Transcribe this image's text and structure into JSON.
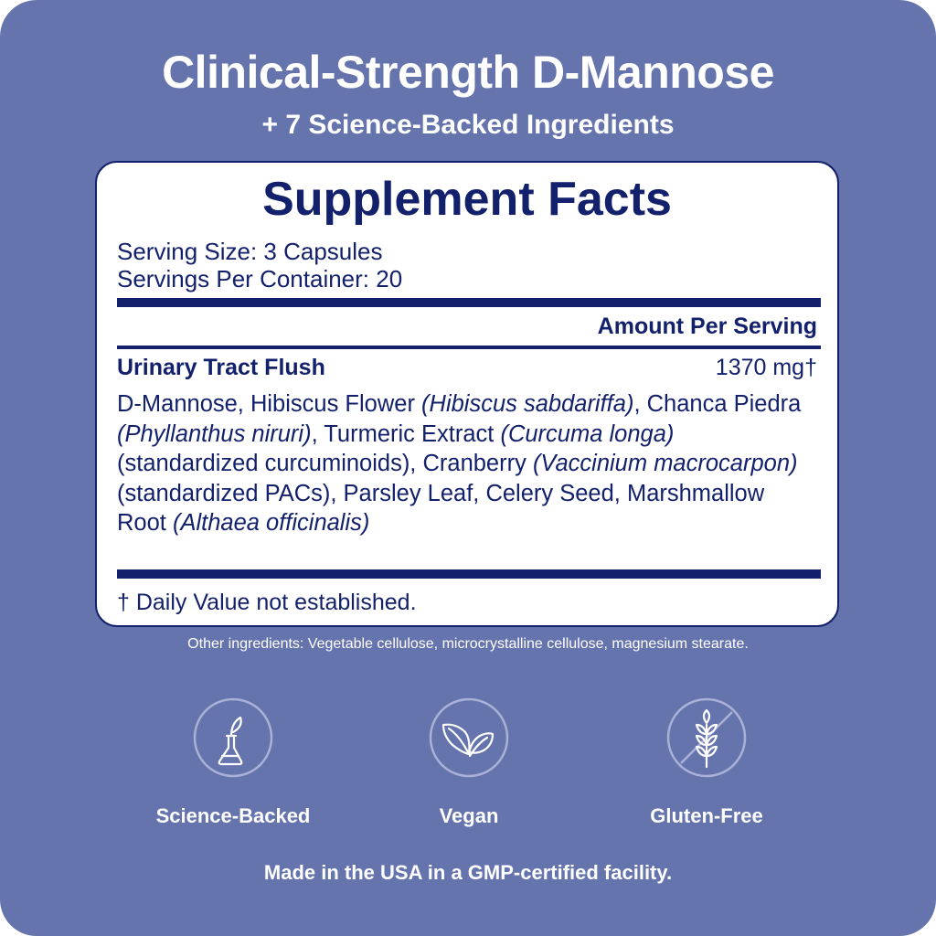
{
  "header": {
    "title": "Clinical-Strength D-Mannose",
    "subtitle": "+ 7 Science-Backed Ingredients"
  },
  "facts": {
    "heading": "Supplement Facts",
    "serving_size": "Serving Size: 3 Capsules",
    "servings_per_container": "Servings Per Container: 20",
    "amount_header": "Amount Per Serving",
    "blend_name": "Urinary Tract Flush",
    "blend_amount": "1370 mg†",
    "ingredients": [
      {
        "text": "D-Mannose, Hibiscus Flower ",
        "italic": false
      },
      {
        "text": "(Hibiscus sabdariffa)",
        "italic": true
      },
      {
        "text": ", Chanca Piedra ",
        "italic": false
      },
      {
        "text": "(Phyllanthus niruri)",
        "italic": true
      },
      {
        "text": ", Turmeric Extract ",
        "italic": false
      },
      {
        "text": "(Curcuma longa)",
        "italic": true
      },
      {
        "text": " (standardized curcuminoids), Cranberry ",
        "italic": false
      },
      {
        "text": "(Vaccinium macrocarpon)",
        "italic": true
      },
      {
        "text": " (standardized PACs), Parsley Leaf, Celery Seed, Marshmallow Root ",
        "italic": false
      },
      {
        "text": "(Althaea officinalis)",
        "italic": true
      }
    ],
    "dv_note": "† Daily Value not established."
  },
  "other_ingredients": "Other ingredients: Vegetable cellulose, microcrystalline cellulose, magnesium stearate.",
  "badges": [
    {
      "label": "Science-Backed",
      "icon": "flask-leaf-icon"
    },
    {
      "label": "Vegan",
      "icon": "leaves-icon"
    },
    {
      "label": "Gluten-Free",
      "icon": "wheat-crossed-icon"
    }
  ],
  "footer": "Made in the USA in a GMP-certified facility.",
  "colors": {
    "background": "#6674ad",
    "navy": "#13206b",
    "card": "#ffffff",
    "icon_ring": "#a9b1d6"
  }
}
